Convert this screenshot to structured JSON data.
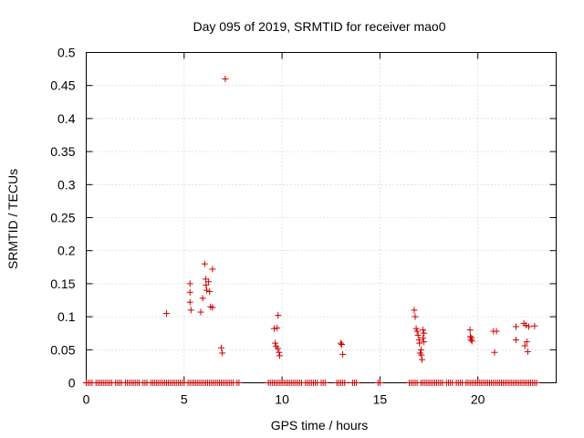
{
  "chart_data": {
    "type": "scatter",
    "title": "Day 095 of 2019, SRMTID for receiver mao0",
    "xlabel": "GPS time / hours",
    "ylabel": "SRMTID / TECUs",
    "xlim": [
      0,
      24
    ],
    "ylim": [
      0,
      0.5
    ],
    "xticks": [
      0,
      5,
      10,
      15,
      20
    ],
    "yticks": [
      0,
      0.05,
      0.1,
      0.15,
      0.2,
      0.25,
      0.3,
      0.35,
      0.4,
      0.45,
      0.5
    ],
    "ytick_labels": [
      "0",
      "0.05",
      "0.1",
      "0.15",
      "0.2",
      "0.25",
      "0.3",
      "0.35",
      "0.4",
      "0.45",
      "0.5"
    ],
    "xtick_labels": [
      "0",
      "5",
      "10",
      "15",
      "20"
    ],
    "grid": true,
    "marker": "+",
    "color": "#cc0000",
    "series": [
      {
        "name": "SRMTID",
        "points": [
          [
            4.1,
            0.105
          ],
          [
            5.3,
            0.15
          ],
          [
            5.3,
            0.137
          ],
          [
            5.3,
            0.122
          ],
          [
            5.35,
            0.11
          ],
          [
            5.85,
            0.107
          ],
          [
            5.95,
            0.128
          ],
          [
            6.05,
            0.18
          ],
          [
            6.1,
            0.157
          ],
          [
            6.12,
            0.148
          ],
          [
            6.15,
            0.14
          ],
          [
            6.25,
            0.153
          ],
          [
            6.3,
            0.138
          ],
          [
            6.35,
            0.115
          ],
          [
            6.45,
            0.114
          ],
          [
            6.45,
            0.172
          ],
          [
            6.9,
            0.053
          ],
          [
            6.95,
            0.045
          ],
          [
            7.1,
            0.46
          ],
          [
            9.6,
            0.082
          ],
          [
            9.65,
            0.06
          ],
          [
            9.7,
            0.055
          ],
          [
            9.75,
            0.083
          ],
          [
            9.78,
            0.052
          ],
          [
            9.8,
            0.102
          ],
          [
            9.85,
            0.046
          ],
          [
            9.88,
            0.041
          ],
          [
            13.0,
            0.06
          ],
          [
            13.05,
            0.058
          ],
          [
            13.1,
            0.043
          ],
          [
            16.75,
            0.11
          ],
          [
            16.8,
            0.1
          ],
          [
            16.85,
            0.082
          ],
          [
            16.9,
            0.078
          ],
          [
            16.95,
            0.072
          ],
          [
            17.0,
            0.065
          ],
          [
            17.02,
            0.06
          ],
          [
            17.05,
            0.045
          ],
          [
            17.1,
            0.05
          ],
          [
            17.12,
            0.042
          ],
          [
            17.15,
            0.035
          ],
          [
            17.2,
            0.08
          ],
          [
            17.2,
            0.068
          ],
          [
            17.25,
            0.062
          ],
          [
            17.25,
            0.075
          ],
          [
            19.6,
            0.08
          ],
          [
            19.62,
            0.07
          ],
          [
            19.65,
            0.065
          ],
          [
            19.68,
            0.068
          ],
          [
            19.7,
            0.063
          ],
          [
            20.8,
            0.078
          ],
          [
            20.85,
            0.046
          ],
          [
            20.95,
            0.078
          ],
          [
            21.95,
            0.085
          ],
          [
            21.95,
            0.065
          ],
          [
            22.35,
            0.09
          ],
          [
            22.4,
            0.056
          ],
          [
            22.45,
            0.087
          ],
          [
            22.5,
            0.062
          ],
          [
            22.55,
            0.047
          ],
          [
            22.6,
            0.085
          ],
          [
            22.9,
            0.086
          ]
        ],
        "zero_intervals": [
          [
            0.0,
            0.3
          ],
          [
            0.5,
            1.3
          ],
          [
            1.5,
            1.8
          ],
          [
            2.0,
            2.7
          ],
          [
            2.9,
            3.1
          ],
          [
            3.3,
            3.5
          ],
          [
            3.6,
            4.4
          ],
          [
            4.5,
            5.0
          ],
          [
            5.2,
            6.6
          ],
          [
            6.7,
            6.9
          ],
          [
            7.0,
            7.5
          ],
          [
            7.7,
            7.8
          ],
          [
            9.3,
            9.4
          ],
          [
            9.5,
            10.7
          ],
          [
            10.8,
            11.0
          ],
          [
            11.2,
            11.4
          ],
          [
            11.5,
            11.8
          ],
          [
            12.0,
            12.2
          ],
          [
            12.8,
            13.0
          ],
          [
            13.1,
            13.2
          ],
          [
            13.6,
            13.8
          ],
          [
            14.9,
            15.0
          ],
          [
            16.5,
            16.9
          ],
          [
            17.1,
            17.5
          ],
          [
            17.6,
            18.2
          ],
          [
            18.4,
            18.7
          ],
          [
            18.9,
            19.2
          ],
          [
            19.4,
            19.7
          ],
          [
            19.8,
            20.5
          ],
          [
            20.6,
            22.3
          ],
          [
            22.4,
            22.8
          ],
          [
            22.9,
            23.0
          ]
        ]
      }
    ]
  }
}
